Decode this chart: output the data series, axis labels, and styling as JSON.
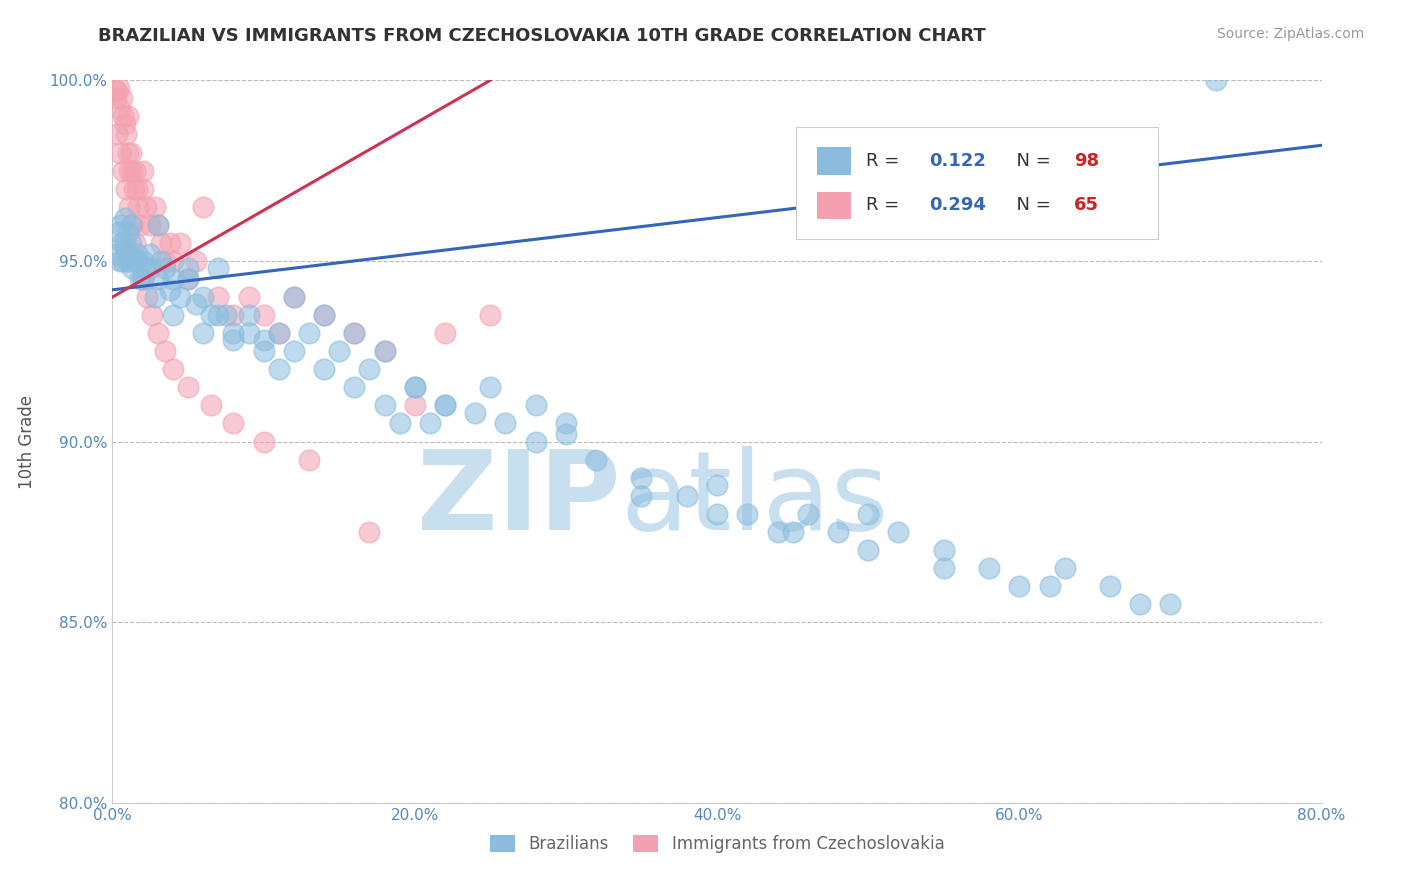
{
  "title": "BRAZILIAN VS IMMIGRANTS FROM CZECHOSLOVAKIA 10TH GRADE CORRELATION CHART",
  "source": "Source: ZipAtlas.com",
  "xlabel": "",
  "ylabel": "10th Grade",
  "xlim": [
    0.0,
    80.0
  ],
  "ylim": [
    80.0,
    100.0
  ],
  "xticks": [
    0.0,
    20.0,
    40.0,
    60.0,
    80.0
  ],
  "yticks": [
    80.0,
    85.0,
    90.0,
    95.0,
    100.0
  ],
  "legend1_label": "Brazilians",
  "legend2_label": "Immigrants from Czechoslovakia",
  "R_blue": 0.122,
  "N_blue": 98,
  "R_pink": 0.294,
  "N_pink": 65,
  "blue_color": "#8BBCDE",
  "pink_color": "#F4A0B0",
  "blue_line_color": "#3366BB",
  "pink_line_color": "#CC3355",
  "watermark_zip": "ZIP",
  "watermark_atlas": "atlas",
  "watermark_color": "#C8DFF0",
  "background_color": "#FFFFFF",
  "title_color": "#333333",
  "title_fontsize": 13,
  "axis_label_color": "#555555",
  "tick_label_color": "#5588BB",
  "grid_color": "#BBBBBB",
  "legend_R_color": "#3366BB",
  "legend_N_color": "#CC2222",
  "blue_line_x0": 0.0,
  "blue_line_y0": 94.2,
  "blue_line_x1": 80.0,
  "blue_line_y1": 98.2,
  "pink_line_x0": 0.0,
  "pink_line_y0": 94.0,
  "pink_line_x1": 25.0,
  "pink_line_y1": 100.0,
  "blue_scatter_x": [
    0.3,
    0.4,
    0.5,
    0.6,
    0.7,
    0.8,
    0.9,
    1.0,
    1.0,
    1.1,
    1.2,
    1.3,
    1.5,
    1.6,
    1.8,
    2.0,
    2.2,
    2.5,
    2.8,
    3.0,
    3.2,
    3.5,
    3.8,
    4.0,
    4.5,
    5.0,
    5.5,
    6.0,
    6.5,
    7.0,
    7.5,
    8.0,
    9.0,
    10.0,
    11.0,
    12.0,
    13.0,
    14.0,
    15.0,
    16.0,
    17.0,
    18.0,
    19.0,
    20.0,
    21.0,
    22.0,
    24.0,
    26.0,
    28.0,
    30.0,
    32.0,
    35.0,
    38.0,
    40.0,
    42.0,
    44.0,
    46.0,
    48.0,
    50.0,
    52.0,
    55.0,
    58.0,
    60.0,
    63.0,
    66.0,
    70.0,
    1.5,
    2.0,
    3.0,
    4.0,
    5.0,
    6.0,
    7.0,
    8.0,
    9.0,
    10.0,
    11.0,
    12.0,
    14.0,
    16.0,
    18.0,
    20.0,
    22.0,
    25.0,
    28.0,
    30.0,
    35.0,
    40.0,
    45.0,
    50.0,
    55.0,
    62.0,
    68.0,
    73.0,
    0.5,
    0.8,
    1.2,
    2.5
  ],
  "blue_scatter_y": [
    95.2,
    95.8,
    96.0,
    95.5,
    95.0,
    96.2,
    95.3,
    95.0,
    95.8,
    95.2,
    95.5,
    94.8,
    95.0,
    95.2,
    94.5,
    95.0,
    94.8,
    95.2,
    94.0,
    94.5,
    95.0,
    94.8,
    94.2,
    94.5,
    94.0,
    94.5,
    93.8,
    94.0,
    93.5,
    94.8,
    93.5,
    93.0,
    93.5,
    92.8,
    93.0,
    92.5,
    93.0,
    92.0,
    92.5,
    91.5,
    92.0,
    91.0,
    90.5,
    91.5,
    90.5,
    91.0,
    90.8,
    90.5,
    90.0,
    90.2,
    89.5,
    89.0,
    88.5,
    88.8,
    88.0,
    87.5,
    88.0,
    87.5,
    88.0,
    87.5,
    87.0,
    86.5,
    86.0,
    86.5,
    86.0,
    85.5,
    95.0,
    94.5,
    96.0,
    93.5,
    94.8,
    93.0,
    93.5,
    92.8,
    93.0,
    92.5,
    92.0,
    94.0,
    93.5,
    93.0,
    92.5,
    91.5,
    91.0,
    91.5,
    91.0,
    90.5,
    88.5,
    88.0,
    87.5,
    87.0,
    86.5,
    86.0,
    85.5,
    100.0,
    95.0,
    95.5,
    96.0,
    94.8
  ],
  "pink_scatter_x": [
    0.1,
    0.2,
    0.3,
    0.4,
    0.5,
    0.6,
    0.7,
    0.8,
    0.9,
    1.0,
    1.0,
    1.1,
    1.2,
    1.3,
    1.4,
    1.5,
    1.6,
    1.7,
    1.8,
    2.0,
    2.0,
    2.2,
    2.5,
    2.8,
    3.0,
    3.2,
    3.5,
    3.8,
    4.0,
    4.5,
    5.0,
    5.5,
    6.0,
    7.0,
    8.0,
    9.0,
    10.0,
    11.0,
    12.0,
    14.0,
    16.0,
    18.0,
    20.0,
    22.0,
    25.0,
    0.3,
    0.5,
    0.7,
    0.9,
    1.1,
    1.3,
    1.5,
    1.7,
    2.0,
    2.3,
    2.6,
    3.0,
    3.5,
    4.0,
    5.0,
    6.5,
    8.0,
    10.0,
    13.0,
    17.0
  ],
  "pink_scatter_y": [
    99.8,
    99.5,
    99.7,
    99.8,
    99.2,
    99.5,
    99.0,
    98.8,
    98.5,
    98.0,
    99.0,
    97.5,
    98.0,
    97.5,
    97.0,
    97.5,
    97.0,
    96.5,
    96.0,
    97.5,
    97.0,
    96.5,
    96.0,
    96.5,
    96.0,
    95.5,
    95.0,
    95.5,
    95.0,
    95.5,
    94.5,
    95.0,
    96.5,
    94.0,
    93.5,
    94.0,
    93.5,
    93.0,
    94.0,
    93.5,
    93.0,
    92.5,
    91.0,
    93.0,
    93.5,
    98.5,
    98.0,
    97.5,
    97.0,
    96.5,
    96.0,
    95.5,
    95.0,
    94.5,
    94.0,
    93.5,
    93.0,
    92.5,
    92.0,
    91.5,
    91.0,
    90.5,
    90.0,
    89.5,
    87.5
  ]
}
